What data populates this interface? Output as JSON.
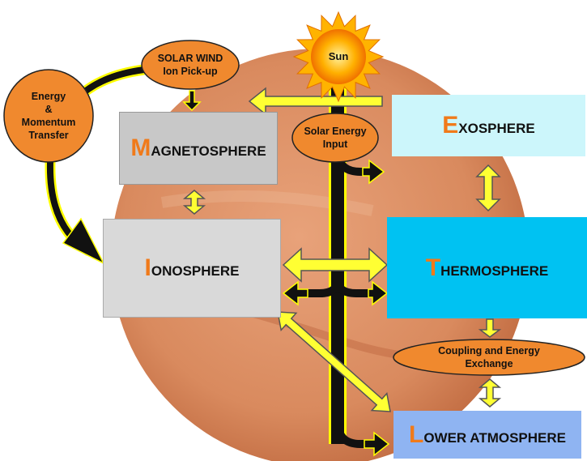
{
  "sun": "Sun",
  "solar_wind": {
    "lines": [
      "SOLAR WIND",
      "Ion Pick-up"
    ]
  },
  "energy_transfer": {
    "lines": [
      "Energy",
      "&",
      "Momentum",
      "Transfer"
    ]
  },
  "solar_energy_input": {
    "lines": [
      "Solar Energy",
      "Input"
    ]
  },
  "coupling": {
    "lines": [
      "Coupling and Energy",
      "Exchange"
    ]
  },
  "layers": {
    "magnetosphere": "MAGNETOSPHERE",
    "ionosphere": "IONOSPHERE",
    "exosphere": "EXOSPHERE",
    "thermosphere": "THERMOSPHERE",
    "lower_atmosphere": "LOWER ATMOSPHERE"
  }
}
